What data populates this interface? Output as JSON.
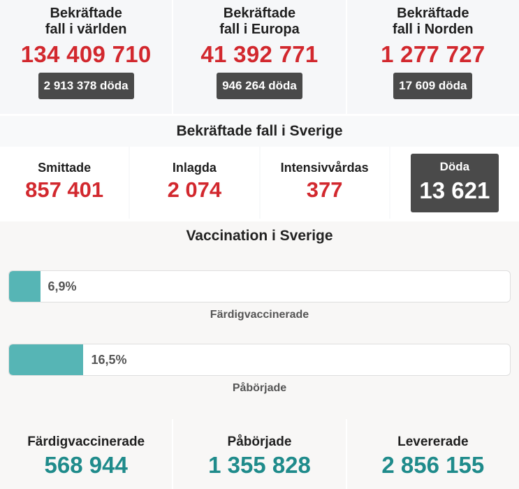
{
  "world": {
    "title_line1": "Bekräftade",
    "title_line2": "fall i världen",
    "cases": "134 409 710",
    "deaths": "2 913 378 döda"
  },
  "europe": {
    "title_line1": "Bekräftade",
    "title_line2": "fall i Europa",
    "cases": "41 392 771",
    "deaths": "946 264 döda"
  },
  "nordic": {
    "title_line1": "Bekräftade",
    "title_line2": "fall i Norden",
    "cases": "1 277 727",
    "deaths": "17 609 döda"
  },
  "sweden": {
    "title": "Bekräftade fall i Sverige",
    "infected_label": "Smittade",
    "infected_value": "857 401",
    "hospitalized_label": "Inlagda",
    "hospitalized_value": "2 074",
    "icu_label": "Intensivvårdas",
    "icu_value": "377",
    "dead_label": "Döda",
    "dead_value": "13 621"
  },
  "vaccination": {
    "title": "Vaccination i Sverige",
    "bars": [
      {
        "percent_label": "6,9%",
        "fraction": 0.069,
        "caption": "Färdigvaccinerade"
      },
      {
        "percent_label": "16,5%",
        "fraction": 0.165,
        "caption": "Påbörjade"
      }
    ],
    "totals": [
      {
        "label": "Färdigvaccinerade",
        "value": "568 944"
      },
      {
        "label": "Påbörjade",
        "value": "1 355 828"
      },
      {
        "label": "Levererade",
        "value": "2 856 155"
      }
    ]
  },
  "colors": {
    "red": "#d2282e",
    "teal": "#1f8b8b",
    "bar_fill": "#56b5b5",
    "dark_pill": "#4a4a4a"
  }
}
